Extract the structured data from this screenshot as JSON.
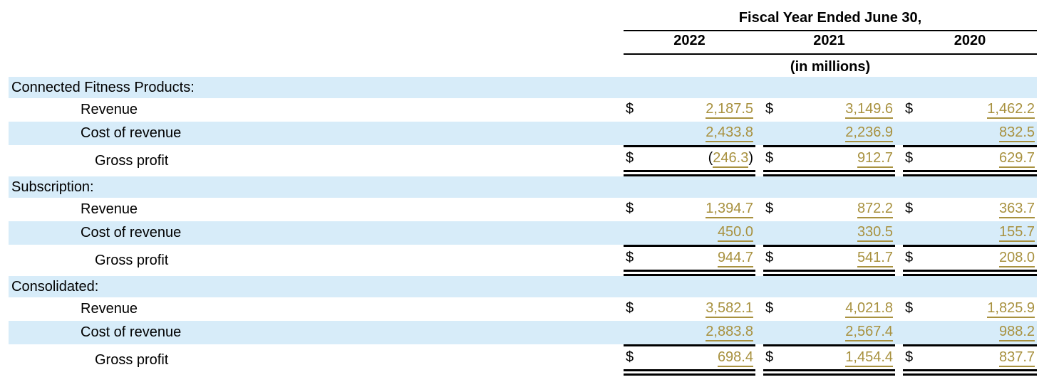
{
  "colors": {
    "stripe_blue": "#D7ECF9",
    "value_gold": "#A8913F",
    "border_black": "#000000"
  },
  "header": {
    "title": "Fiscal Year Ended June 30,",
    "years": [
      "2022",
      "2021",
      "2020"
    ],
    "units_note": "(in millions)"
  },
  "table": {
    "sections": [
      {
        "label": "Connected Fitness Products:",
        "rows": [
          {
            "label": "Revenue",
            "cells": [
              {
                "cur": "$",
                "pre": "",
                "val": "2,187.5",
                "post": ""
              },
              {
                "cur": "$",
                "pre": "",
                "val": "3,149.6",
                "post": ""
              },
              {
                "cur": "$",
                "pre": "",
                "val": "1,462.2",
                "post": ""
              }
            ]
          },
          {
            "label": "Cost of revenue",
            "cells": [
              {
                "cur": "",
                "pre": "",
                "val": "2,433.8",
                "post": ""
              },
              {
                "cur": "",
                "pre": "",
                "val": "2,236.9",
                "post": ""
              },
              {
                "cur": "",
                "pre": "",
                "val": "832.5",
                "post": ""
              }
            ]
          },
          {
            "label": "Gross profit",
            "cells": [
              {
                "cur": "$",
                "pre": "(",
                "val": "246.3",
                "post": ")"
              },
              {
                "cur": "$",
                "pre": "",
                "val": "912.7",
                "post": ""
              },
              {
                "cur": "$",
                "pre": "",
                "val": "629.7",
                "post": ""
              }
            ]
          }
        ]
      },
      {
        "label": "Subscription:",
        "rows": [
          {
            "label": "Revenue",
            "cells": [
              {
                "cur": "$",
                "pre": "",
                "val": "1,394.7",
                "post": ""
              },
              {
                "cur": "$",
                "pre": "",
                "val": "872.2",
                "post": ""
              },
              {
                "cur": "$",
                "pre": "",
                "val": "363.7",
                "post": ""
              }
            ]
          },
          {
            "label": "Cost of revenue",
            "cells": [
              {
                "cur": "",
                "pre": "",
                "val": "450.0",
                "post": ""
              },
              {
                "cur": "",
                "pre": "",
                "val": "330.5",
                "post": ""
              },
              {
                "cur": "",
                "pre": "",
                "val": "155.7",
                "post": ""
              }
            ]
          },
          {
            "label": "Gross profit",
            "cells": [
              {
                "cur": "$",
                "pre": "",
                "val": "944.7",
                "post": ""
              },
              {
                "cur": "$",
                "pre": "",
                "val": "541.7",
                "post": ""
              },
              {
                "cur": "$",
                "pre": "",
                "val": "208.0",
                "post": ""
              }
            ]
          }
        ]
      },
      {
        "label": "Consolidated:",
        "rows": [
          {
            "label": "Revenue",
            "cells": [
              {
                "cur": "$",
                "pre": "",
                "val": "3,582.1",
                "post": ""
              },
              {
                "cur": "$",
                "pre": "",
                "val": "4,021.8",
                "post": ""
              },
              {
                "cur": "$",
                "pre": "",
                "val": "1,825.9",
                "post": ""
              }
            ]
          },
          {
            "label": "Cost of revenue",
            "cells": [
              {
                "cur": "",
                "pre": "",
                "val": "2,883.8",
                "post": ""
              },
              {
                "cur": "",
                "pre": "",
                "val": "2,567.4",
                "post": ""
              },
              {
                "cur": "",
                "pre": "",
                "val": "988.2",
                "post": ""
              }
            ]
          },
          {
            "label": "Gross profit",
            "cells": [
              {
                "cur": "$",
                "pre": "",
                "val": "698.4",
                "post": ""
              },
              {
                "cur": "$",
                "pre": "",
                "val": "1,454.4",
                "post": ""
              },
              {
                "cur": "$",
                "pre": "",
                "val": "837.7",
                "post": ""
              }
            ]
          }
        ]
      }
    ]
  }
}
